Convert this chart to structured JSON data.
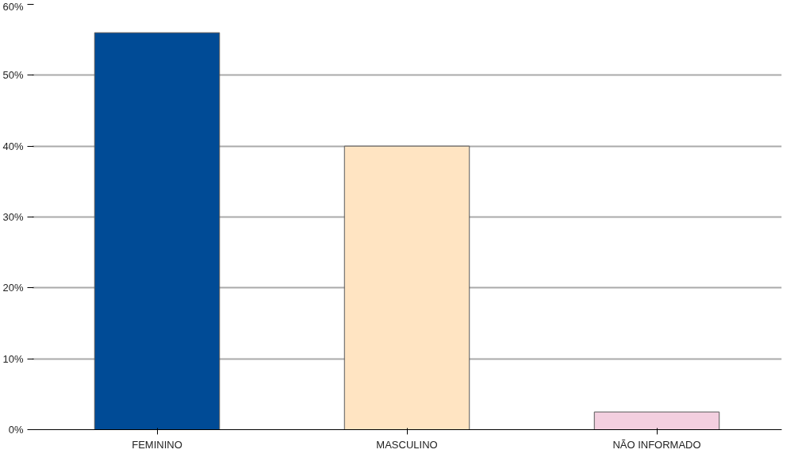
{
  "chart_data": {
    "type": "bar",
    "categories": [
      "FEMININO",
      "MASCULINO",
      "NÃO INFORMADO"
    ],
    "values": [
      56,
      40,
      2.5
    ],
    "colors": [
      "#004b96",
      "#ffe4c2",
      "#f3cfdf"
    ],
    "ylim": [
      0,
      60
    ],
    "yticks": [
      {
        "value": 0,
        "label": "0%"
      },
      {
        "value": 10,
        "label": "10%"
      },
      {
        "value": 20,
        "label": "20%"
      },
      {
        "value": 30,
        "label": "30%"
      },
      {
        "value": 40,
        "label": "40%"
      },
      {
        "value": 50,
        "label": "50%"
      },
      {
        "value": 60,
        "label": "60%"
      }
    ],
    "grid": "y"
  }
}
